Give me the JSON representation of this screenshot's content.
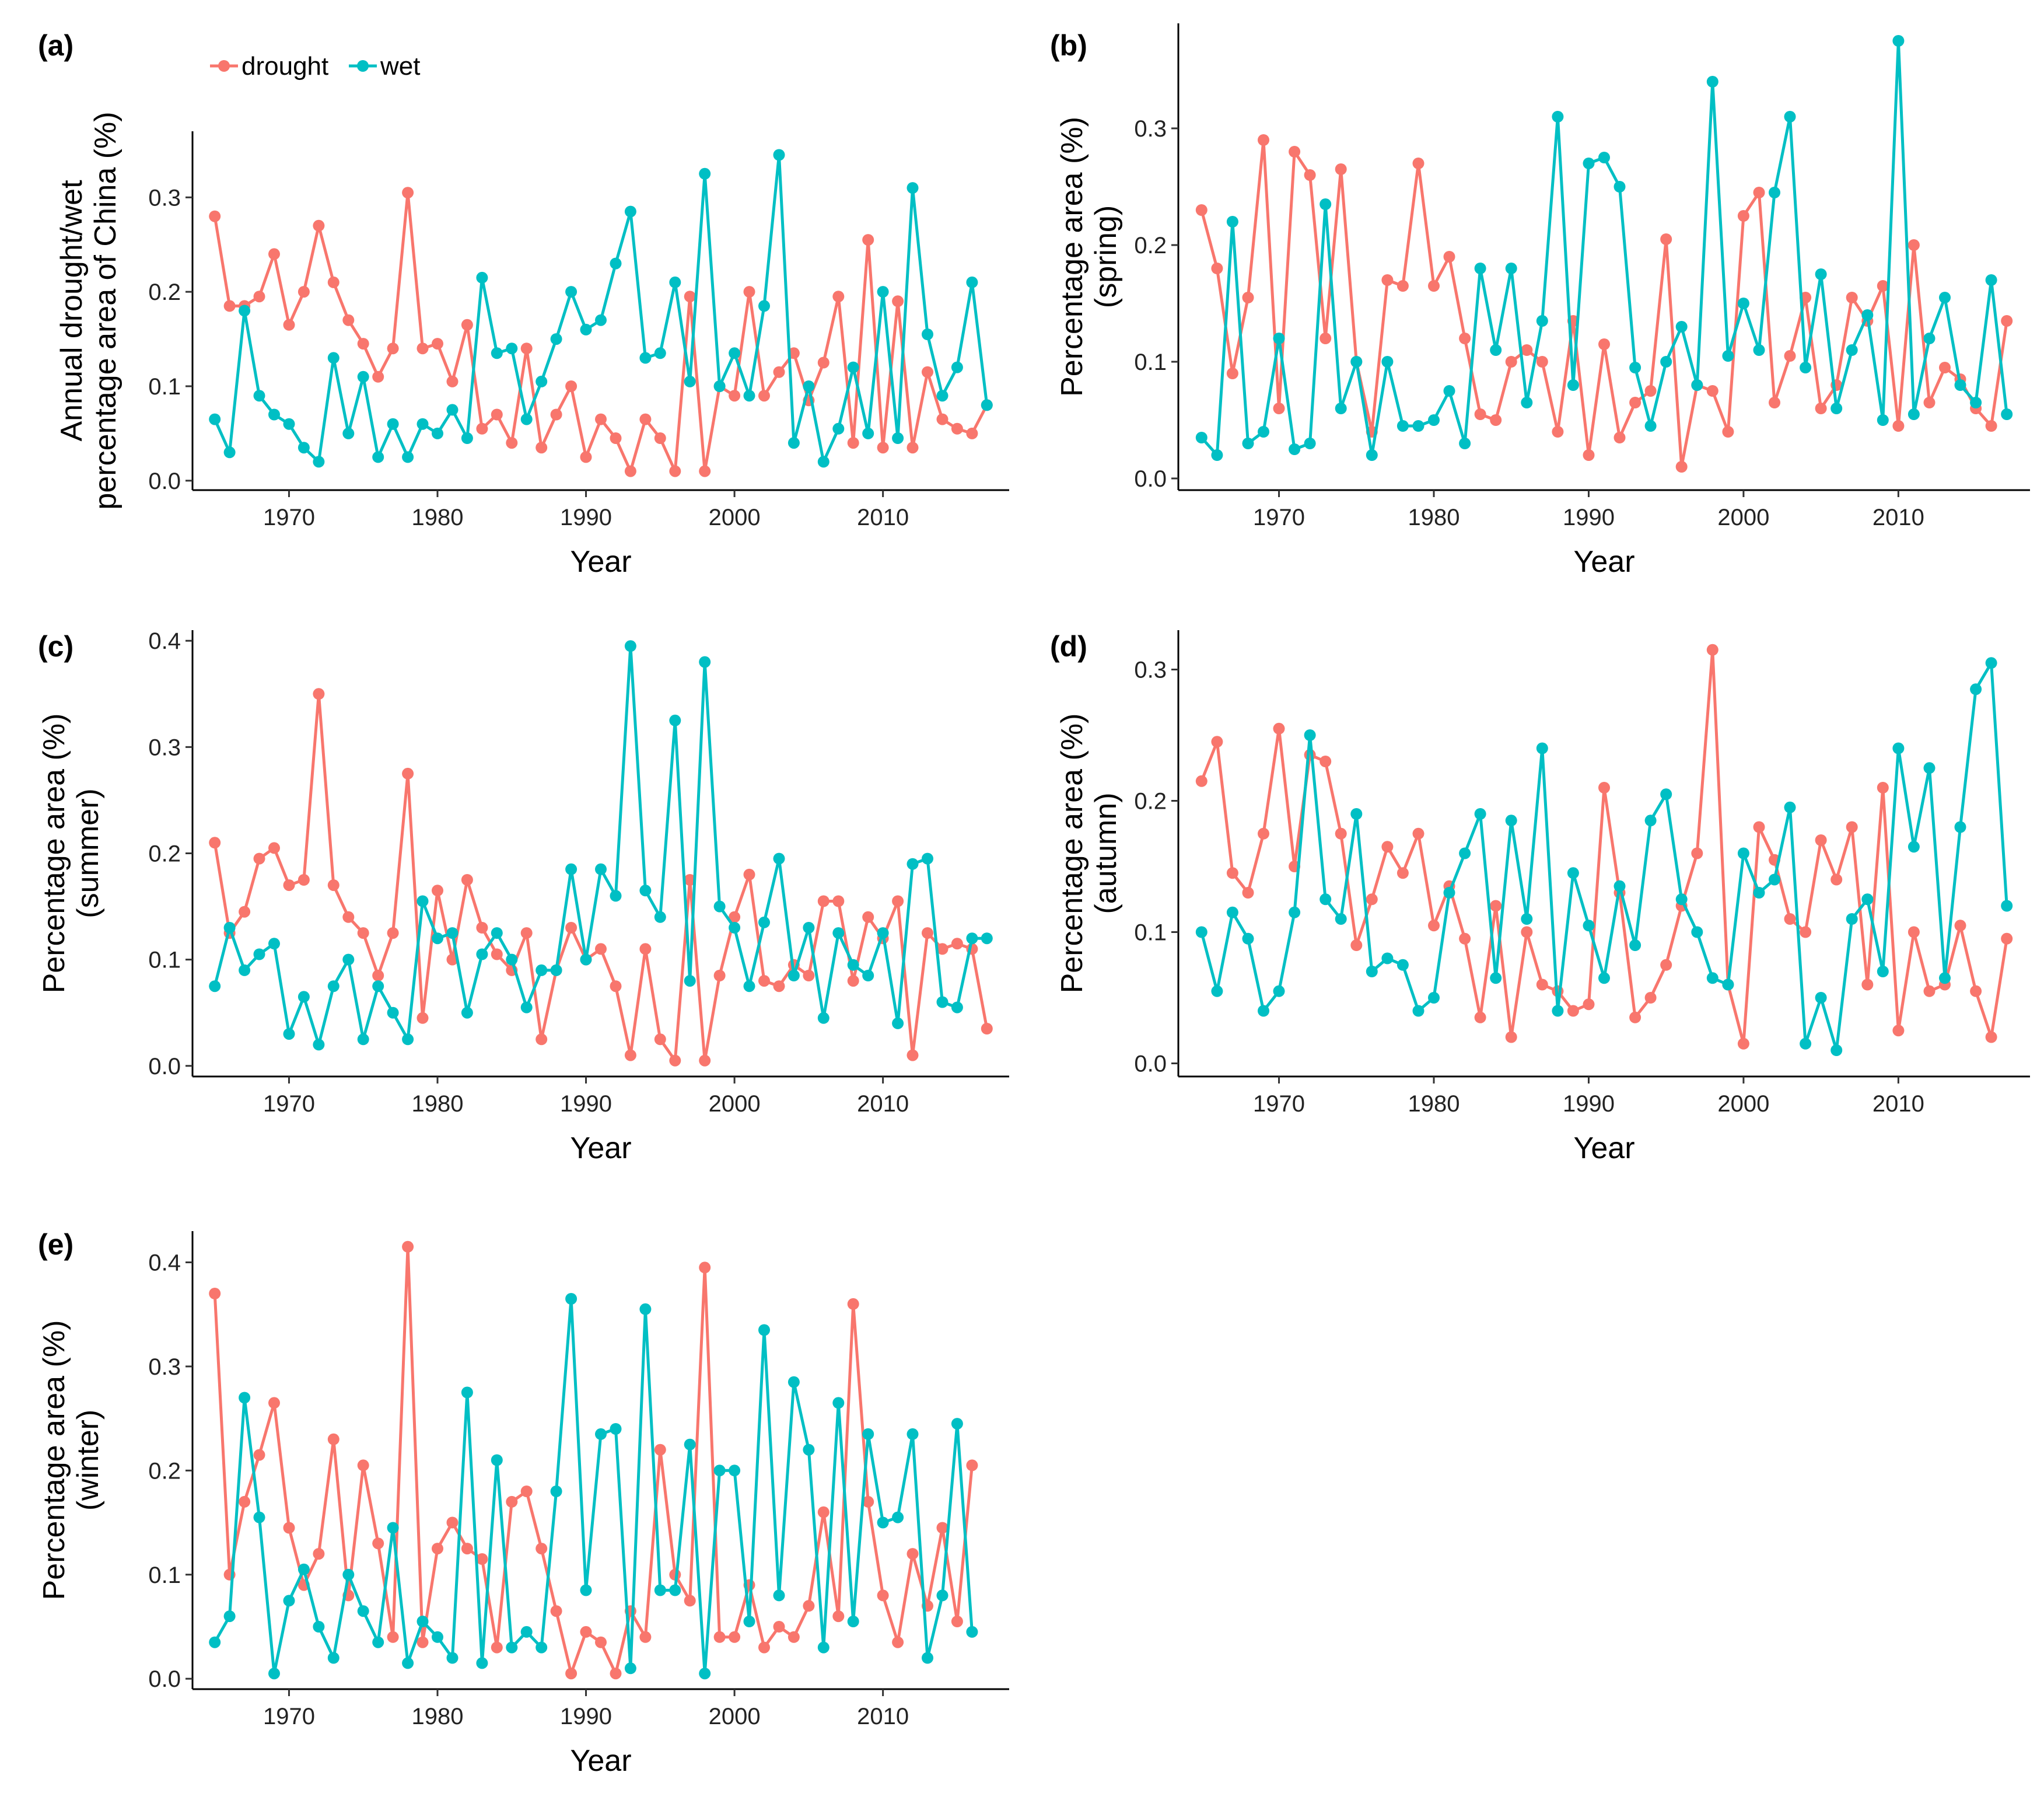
{
  "legend": {
    "entries": [
      {
        "label": "drought",
        "color": "#F8766D"
      },
      {
        "label": "wet",
        "color": "#00BFC4"
      }
    ]
  },
  "chart_data": [
    {
      "id": "a",
      "letter": "(a)",
      "type": "line",
      "title": "",
      "xlabel": "Year",
      "ylabel": [
        "Annual drought/wet",
        "percentage area of China (%)"
      ],
      "xlim": [
        1963.5,
        2018.5
      ],
      "ylim": [
        -0.01,
        0.37
      ],
      "xticks": [
        1970,
        1980,
        1990,
        2000,
        2010
      ],
      "yticks": [
        0.0,
        0.1,
        0.2,
        0.3
      ],
      "ytick_labels": [
        "0.0",
        "0.1",
        "0.2",
        "0.3"
      ],
      "x": [
        1965,
        1966,
        1967,
        1968,
        1969,
        1970,
        1971,
        1972,
        1973,
        1974,
        1975,
        1976,
        1977,
        1978,
        1979,
        1980,
        1981,
        1982,
        1983,
        1984,
        1985,
        1986,
        1987,
        1988,
        1989,
        1990,
        1991,
        1992,
        1993,
        1994,
        1995,
        1996,
        1997,
        1998,
        1999,
        2000,
        2001,
        2002,
        2003,
        2004,
        2005,
        2006,
        2007,
        2008,
        2009,
        2010,
        2011,
        2012,
        2013,
        2014,
        2015,
        2016,
        2017
      ],
      "series": [
        {
          "name": "drought",
          "color": "#F8766D",
          "values": [
            0.28,
            0.185,
            0.185,
            0.195,
            0.24,
            0.165,
            0.2,
            0.27,
            0.21,
            0.17,
            0.145,
            0.11,
            0.14,
            0.305,
            0.14,
            0.145,
            0.105,
            0.165,
            0.055,
            0.07,
            0.04,
            0.14,
            0.035,
            0.07,
            0.1,
            0.025,
            0.065,
            0.045,
            0.01,
            0.065,
            0.045,
            0.01,
            0.195,
            0.01,
            0.1,
            0.09,
            0.2,
            0.09,
            0.115,
            0.135,
            0.085,
            0.125,
            0.195,
            0.04,
            0.255,
            0.035,
            0.19,
            0.035,
            0.115,
            0.065,
            0.055,
            0.05,
            0.08
          ]
        },
        {
          "name": "wet",
          "color": "#00BFC4",
          "values": [
            0.065,
            0.03,
            0.18,
            0.09,
            0.07,
            0.06,
            0.035,
            0.02,
            0.13,
            0.05,
            0.11,
            0.025,
            0.06,
            0.025,
            0.06,
            0.05,
            0.075,
            0.045,
            0.215,
            0.135,
            0.14,
            0.065,
            0.105,
            0.15,
            0.2,
            0.16,
            0.17,
            0.23,
            0.285,
            0.13,
            0.135,
            0.21,
            0.105,
            0.325,
            0.1,
            0.135,
            0.09,
            0.185,
            0.345,
            0.04,
            0.1,
            0.02,
            0.055,
            0.12,
            0.05,
            0.2,
            0.045,
            0.31,
            0.155,
            0.09,
            0.12,
            0.21,
            0.08
          ]
        }
      ]
    },
    {
      "id": "b",
      "letter": "(b)",
      "type": "line",
      "title": "",
      "xlabel": "Year",
      "ylabel": [
        "Percentage area (%)",
        "(spring)"
      ],
      "xlim": [
        1963.5,
        2018.5
      ],
      "ylim": [
        -0.01,
        0.39
      ],
      "xticks": [
        1970,
        1980,
        1990,
        2000,
        2010
      ],
      "yticks": [
        0.0,
        0.1,
        0.2,
        0.3
      ],
      "ytick_labels": [
        "0.0",
        "0.1",
        "0.2",
        "0.3"
      ],
      "x": [
        1965,
        1966,
        1967,
        1968,
        1969,
        1970,
        1971,
        1972,
        1973,
        1974,
        1975,
        1976,
        1977,
        1978,
        1979,
        1980,
        1981,
        1982,
        1983,
        1984,
        1985,
        1986,
        1987,
        1988,
        1989,
        1990,
        1991,
        1992,
        1993,
        1994,
        1995,
        1996,
        1997,
        1998,
        1999,
        2000,
        2001,
        2002,
        2003,
        2004,
        2005,
        2006,
        2007,
        2008,
        2009,
        2010,
        2011,
        2012,
        2013,
        2014,
        2015,
        2016,
        2017
      ],
      "series": [
        {
          "name": "drought",
          "color": "#F8766D",
          "values": [
            0.23,
            0.18,
            0.09,
            0.155,
            0.29,
            0.06,
            0.28,
            0.26,
            0.12,
            0.265,
            0.1,
            0.04,
            0.17,
            0.165,
            0.27,
            0.165,
            0.19,
            0.12,
            0.055,
            0.05,
            0.1,
            0.11,
            0.1,
            0.04,
            0.135,
            0.02,
            0.115,
            0.035,
            0.065,
            0.075,
            0.205,
            0.01,
            0.08,
            0.075,
            0.04,
            0.225,
            0.245,
            0.065,
            0.105,
            0.155,
            0.06,
            0.08,
            0.155,
            0.135,
            0.165,
            0.045,
            0.2,
            0.065,
            0.095,
            0.085,
            0.06,
            0.045,
            0.135
          ]
        },
        {
          "name": "wet",
          "color": "#00BFC4",
          "values": [
            0.035,
            0.02,
            0.22,
            0.03,
            0.04,
            0.12,
            0.025,
            0.03,
            0.235,
            0.06,
            0.1,
            0.02,
            0.1,
            0.045,
            0.045,
            0.05,
            0.075,
            0.03,
            0.18,
            0.11,
            0.18,
            0.065,
            0.135,
            0.31,
            0.08,
            0.27,
            0.275,
            0.25,
            0.095,
            0.045,
            0.1,
            0.13,
            0.08,
            0.34,
            0.105,
            0.15,
            0.11,
            0.245,
            0.31,
            0.095,
            0.175,
            0.06,
            0.11,
            0.14,
            0.05,
            0.375,
            0.055,
            0.12,
            0.155,
            0.08,
            0.065,
            0.17,
            0.055
          ]
        }
      ]
    },
    {
      "id": "c",
      "letter": "(c)",
      "type": "line",
      "title": "",
      "xlabel": "Year",
      "ylabel": [
        "Percentage area (%)",
        "(summer)"
      ],
      "xlim": [
        1963.5,
        2018.5
      ],
      "ylim": [
        -0.01,
        0.41
      ],
      "xticks": [
        1970,
        1980,
        1990,
        2000,
        2010
      ],
      "yticks": [
        0.0,
        0.1,
        0.2,
        0.3,
        0.4
      ],
      "ytick_labels": [
        "0.0",
        "0.1",
        "0.2",
        "0.3",
        "0.4"
      ],
      "x": [
        1965,
        1966,
        1967,
        1968,
        1969,
        1970,
        1971,
        1972,
        1973,
        1974,
        1975,
        1976,
        1977,
        1978,
        1979,
        1980,
        1981,
        1982,
        1983,
        1984,
        1985,
        1986,
        1987,
        1988,
        1989,
        1990,
        1991,
        1992,
        1993,
        1994,
        1995,
        1996,
        1997,
        1998,
        1999,
        2000,
        2001,
        2002,
        2003,
        2004,
        2005,
        2006,
        2007,
        2008,
        2009,
        2010,
        2011,
        2012,
        2013,
        2014,
        2015,
        2016,
        2017
      ],
      "series": [
        {
          "name": "drought",
          "color": "#F8766D",
          "values": [
            0.21,
            0.125,
            0.145,
            0.195,
            0.205,
            0.17,
            0.175,
            0.35,
            0.17,
            0.14,
            0.125,
            0.085,
            0.125,
            0.275,
            0.045,
            0.165,
            0.1,
            0.175,
            0.13,
            0.105,
            0.09,
            0.125,
            0.025,
            0.09,
            0.13,
            0.1,
            0.11,
            0.075,
            0.01,
            0.11,
            0.025,
            0.005,
            0.175,
            0.005,
            0.085,
            0.14,
            0.18,
            0.08,
            0.075,
            0.095,
            0.085,
            0.155,
            0.155,
            0.08,
            0.14,
            0.12,
            0.155,
            0.01,
            0.125,
            0.11,
            0.115,
            0.11,
            0.035
          ]
        },
        {
          "name": "wet",
          "color": "#00BFC4",
          "values": [
            0.075,
            0.13,
            0.09,
            0.105,
            0.115,
            0.03,
            0.065,
            0.02,
            0.075,
            0.1,
            0.025,
            0.075,
            0.05,
            0.025,
            0.155,
            0.12,
            0.125,
            0.05,
            0.105,
            0.125,
            0.1,
            0.055,
            0.09,
            0.09,
            0.185,
            0.1,
            0.185,
            0.16,
            0.395,
            0.165,
            0.14,
            0.325,
            0.08,
            0.38,
            0.15,
            0.13,
            0.075,
            0.135,
            0.195,
            0.085,
            0.13,
            0.045,
            0.125,
            0.095,
            0.085,
            0.125,
            0.04,
            0.19,
            0.195,
            0.06,
            0.055,
            0.12,
            0.12
          ]
        }
      ]
    },
    {
      "id": "d",
      "letter": "(d)",
      "type": "line",
      "title": "",
      "xlabel": "Year",
      "ylabel": [
        "Percentage area (%)",
        "(autumn)"
      ],
      "xlim": [
        1963.5,
        2018.5
      ],
      "ylim": [
        -0.01,
        0.33
      ],
      "xticks": [
        1970,
        1980,
        1990,
        2000,
        2010
      ],
      "yticks": [
        0.0,
        0.1,
        0.2,
        0.3
      ],
      "ytick_labels": [
        "0.0",
        "0.1",
        "0.2",
        "0.3"
      ],
      "x": [
        1965,
        1966,
        1967,
        1968,
        1969,
        1970,
        1971,
        1972,
        1973,
        1974,
        1975,
        1976,
        1977,
        1978,
        1979,
        1980,
        1981,
        1982,
        1983,
        1984,
        1985,
        1986,
        1987,
        1988,
        1989,
        1990,
        1991,
        1992,
        1993,
        1994,
        1995,
        1996,
        1997,
        1998,
        1999,
        2000,
        2001,
        2002,
        2003,
        2004,
        2005,
        2006,
        2007,
        2008,
        2009,
        2010,
        2011,
        2012,
        2013,
        2014,
        2015,
        2016,
        2017
      ],
      "series": [
        {
          "name": "drought",
          "color": "#F8766D",
          "values": [
            0.215,
            0.245,
            0.145,
            0.13,
            0.175,
            0.255,
            0.15,
            0.235,
            0.23,
            0.175,
            0.09,
            0.125,
            0.165,
            0.145,
            0.175,
            0.105,
            0.135,
            0.095,
            0.035,
            0.12,
            0.02,
            0.1,
            0.06,
            0.055,
            0.04,
            0.045,
            0.21,
            0.13,
            0.035,
            0.05,
            0.075,
            0.12,
            0.16,
            0.315,
            0.06,
            0.015,
            0.18,
            0.155,
            0.11,
            0.1,
            0.17,
            0.14,
            0.18,
            0.06,
            0.21,
            0.025,
            0.1,
            0.055,
            0.06,
            0.105,
            0.055,
            0.02,
            0.095
          ]
        },
        {
          "name": "wet",
          "color": "#00BFC4",
          "values": [
            0.1,
            0.055,
            0.115,
            0.095,
            0.04,
            0.055,
            0.115,
            0.25,
            0.125,
            0.11,
            0.19,
            0.07,
            0.08,
            0.075,
            0.04,
            0.05,
            0.13,
            0.16,
            0.19,
            0.065,
            0.185,
            0.11,
            0.24,
            0.04,
            0.145,
            0.105,
            0.065,
            0.135,
            0.09,
            0.185,
            0.205,
            0.125,
            0.1,
            0.065,
            0.06,
            0.16,
            0.13,
            0.14,
            0.195,
            0.015,
            0.05,
            0.01,
            0.11,
            0.125,
            0.07,
            0.24,
            0.165,
            0.225,
            0.065,
            0.18,
            0.285,
            0.305,
            0.12
          ]
        }
      ]
    },
    {
      "id": "e",
      "letter": "(e)",
      "type": "line",
      "title": "",
      "xlabel": "Year",
      "ylabel": [
        "Percentage area (%)",
        "(winter)"
      ],
      "xlim": [
        1963.5,
        2018.5
      ],
      "ylim": [
        -0.01,
        0.43
      ],
      "xticks": [
        1970,
        1980,
        1990,
        2000,
        2010
      ],
      "yticks": [
        0.0,
        0.1,
        0.2,
        0.3,
        0.4
      ],
      "ytick_labels": [
        "0.0",
        "0.1",
        "0.2",
        "0.3",
        "0.4"
      ],
      "x": [
        1965,
        1966,
        1967,
        1968,
        1969,
        1970,
        1971,
        1972,
        1973,
        1974,
        1975,
        1976,
        1977,
        1978,
        1979,
        1980,
        1981,
        1982,
        1983,
        1984,
        1985,
        1986,
        1987,
        1988,
        1989,
        1990,
        1991,
        1992,
        1993,
        1994,
        1995,
        1996,
        1997,
        1998,
        1999,
        2000,
        2001,
        2002,
        2003,
        2004,
        2005,
        2006,
        2007,
        2008,
        2009,
        2010,
        2011,
        2012,
        2013,
        2014,
        2015,
        2016
      ],
      "series": [
        {
          "name": "drought",
          "color": "#F8766D",
          "values": [
            0.37,
            0.1,
            0.17,
            0.215,
            0.265,
            0.145,
            0.09,
            0.12,
            0.23,
            0.08,
            0.205,
            0.13,
            0.04,
            0.415,
            0.035,
            0.125,
            0.15,
            0.125,
            0.115,
            0.03,
            0.17,
            0.18,
            0.125,
            0.065,
            0.005,
            0.045,
            0.035,
            0.005,
            0.065,
            0.04,
            0.22,
            0.1,
            0.075,
            0.395,
            0.04,
            0.04,
            0.09,
            0.03,
            0.05,
            0.04,
            0.07,
            0.16,
            0.06,
            0.36,
            0.17,
            0.08,
            0.035,
            0.12,
            0.07,
            0.145,
            0.055,
            0.205
          ]
        },
        {
          "name": "wet",
          "color": "#00BFC4",
          "values": [
            0.035,
            0.06,
            0.27,
            0.155,
            0.005,
            0.075,
            0.105,
            0.05,
            0.02,
            0.1,
            0.065,
            0.035,
            0.145,
            0.015,
            0.055,
            0.04,
            0.02,
            0.275,
            0.015,
            0.21,
            0.03,
            0.045,
            0.03,
            0.18,
            0.365,
            0.085,
            0.235,
            0.24,
            0.01,
            0.355,
            0.085,
            0.085,
            0.225,
            0.005,
            0.2,
            0.2,
            0.055,
            0.335,
            0.08,
            0.285,
            0.22,
            0.03,
            0.265,
            0.055,
            0.235,
            0.15,
            0.155,
            0.235,
            0.02,
            0.08,
            0.245,
            0.045
          ]
        }
      ]
    }
  ]
}
